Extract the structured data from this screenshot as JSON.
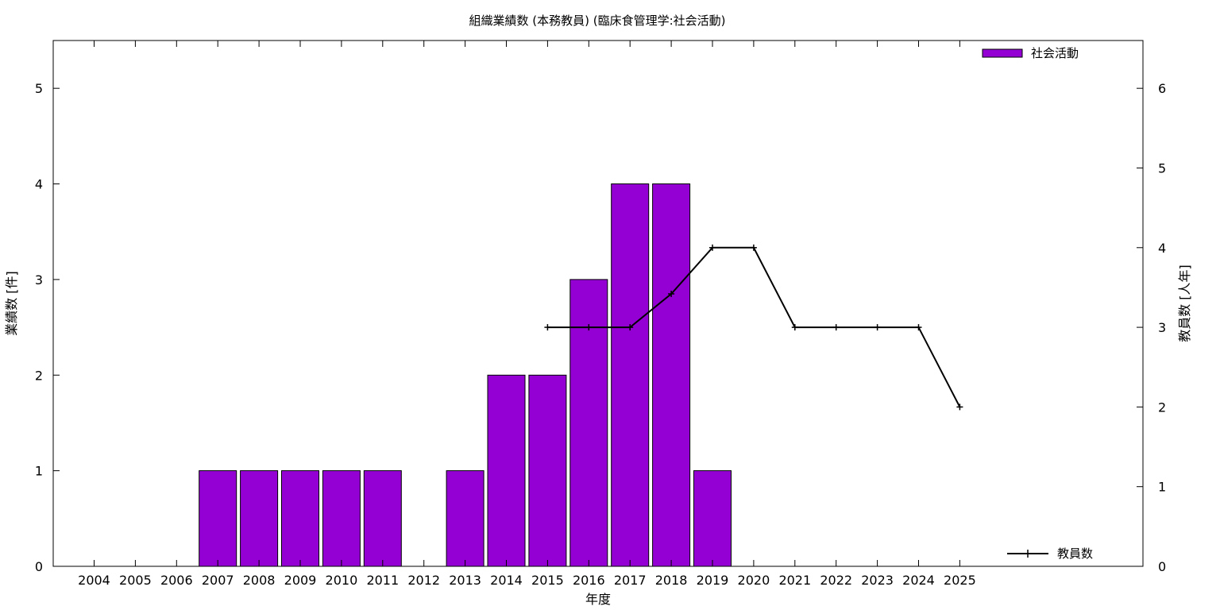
{
  "chart_data": {
    "type": "bar",
    "title": "組織業績数 (本務教員) (臨床食管理学:社会活動)",
    "xlabel": "年度",
    "ylabel": "業績数 [件]",
    "y2label": "教員数 [人年]",
    "ylim": [
      0,
      5.5
    ],
    "y2lim": [
      0,
      6.6
    ],
    "yticks": [
      "0",
      "1",
      "2",
      "3",
      "4",
      "5"
    ],
    "y2ticks": [
      "0",
      "1",
      "2",
      "3",
      "4",
      "5",
      "6"
    ],
    "categories": [
      "2004",
      "2005",
      "2006",
      "2007",
      "2008",
      "2009",
      "2010",
      "2011",
      "2012",
      "2013",
      "2014",
      "2015",
      "2016",
      "2017",
      "2018",
      "2019",
      "2020",
      "2021",
      "2022",
      "2023",
      "2024",
      "2025"
    ],
    "grid": false,
    "series": [
      {
        "name": "社会活動",
        "kind": "bar",
        "axis": "left",
        "color": "#9400d3",
        "values": [
          0,
          0,
          0,
          1,
          1,
          1,
          1,
          1,
          0,
          1,
          2,
          2,
          3,
          4,
          4,
          1,
          0,
          0,
          0,
          0,
          0,
          0
        ]
      },
      {
        "name": "教員数",
        "kind": "line",
        "axis": "right",
        "color": "#000000",
        "values": [
          null,
          null,
          null,
          null,
          null,
          null,
          null,
          null,
          null,
          null,
          null,
          3,
          3,
          3,
          3.42,
          4,
          4,
          3,
          3,
          3,
          3,
          2
        ]
      }
    ],
    "legend": [
      {
        "label": "社会活動",
        "position": "top-right"
      },
      {
        "label": "教員数",
        "position": "bottom-right"
      }
    ]
  }
}
